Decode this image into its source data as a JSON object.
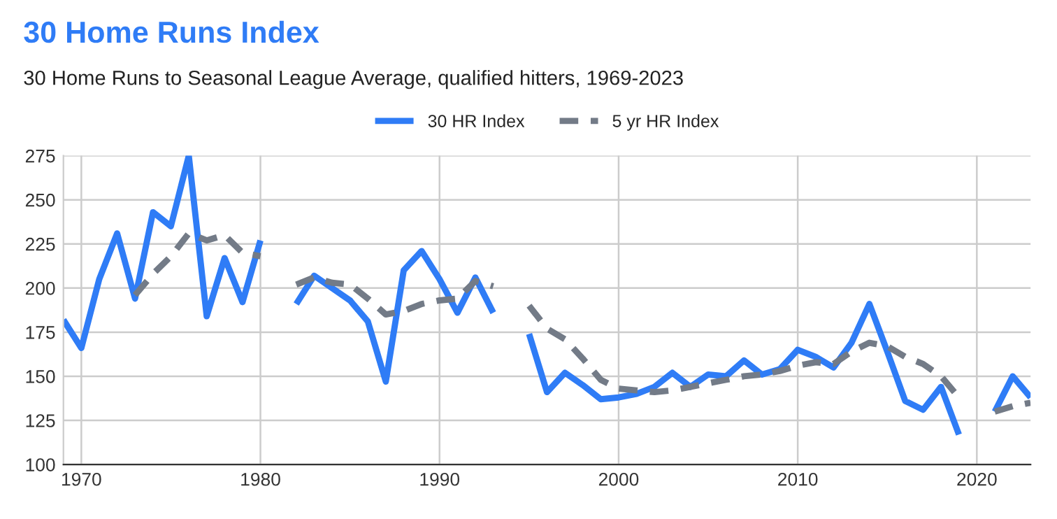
{
  "chart_data": {
    "type": "line",
    "title": "30 Home Runs Index",
    "subtitle": "30 Home Runs to Seasonal League Average, qualified hitters, 1969-2023",
    "x": [
      1969,
      1970,
      1971,
      1972,
      1973,
      1974,
      1975,
      1976,
      1977,
      1978,
      1979,
      1980,
      1981,
      1982,
      1983,
      1984,
      1985,
      1986,
      1987,
      1988,
      1989,
      1990,
      1991,
      1992,
      1993,
      1994,
      1995,
      1996,
      1997,
      1998,
      1999,
      2000,
      2001,
      2002,
      2003,
      2004,
      2005,
      2006,
      2007,
      2008,
      2009,
      2010,
      2011,
      2012,
      2013,
      2014,
      2015,
      2016,
      2017,
      2018,
      2019,
      2020,
      2021,
      2022,
      2023
    ],
    "series": [
      {
        "name": "30 HR Index",
        "color": "#2f7cf6",
        "line_style": "solid",
        "values": [
          182,
          166,
          205,
          231,
          194,
          243,
          235,
          275,
          184,
          217,
          192,
          227,
          null,
          191,
          207,
          200,
          193,
          181,
          147,
          210,
          221,
          205,
          186,
          206,
          186,
          null,
          174,
          141,
          152,
          145,
          137,
          138,
          140,
          144,
          152,
          144,
          151,
          150,
          159,
          151,
          154,
          165,
          161,
          155,
          169,
          191,
          164,
          136,
          131,
          144,
          117,
          null,
          130,
          150,
          138
        ]
      },
      {
        "name": "5 yr HR Index",
        "color": "#737b87",
        "line_style": "dashed",
        "values": [
          null,
          null,
          null,
          null,
          196,
          208,
          218,
          231,
          227,
          230,
          220,
          218,
          null,
          202,
          206,
          203,
          202,
          194,
          185,
          187,
          191,
          193,
          194,
          204,
          201,
          null,
          190,
          177,
          171,
          160,
          148,
          143,
          142,
          141,
          142,
          144,
          146,
          148,
          150,
          151,
          153,
          156,
          158,
          157,
          164,
          169,
          167,
          161,
          157,
          150,
          138,
          null,
          130,
          133,
          135
        ]
      }
    ],
    "xlim": [
      1969,
      2023
    ],
    "xticks": [
      1970,
      1980,
      1990,
      2000,
      2010,
      2020
    ],
    "ylim": [
      100,
      275
    ],
    "yticks": [
      100,
      125,
      150,
      175,
      200,
      225,
      250,
      275
    ],
    "grid": true,
    "legend": "top",
    "marker": "none"
  }
}
